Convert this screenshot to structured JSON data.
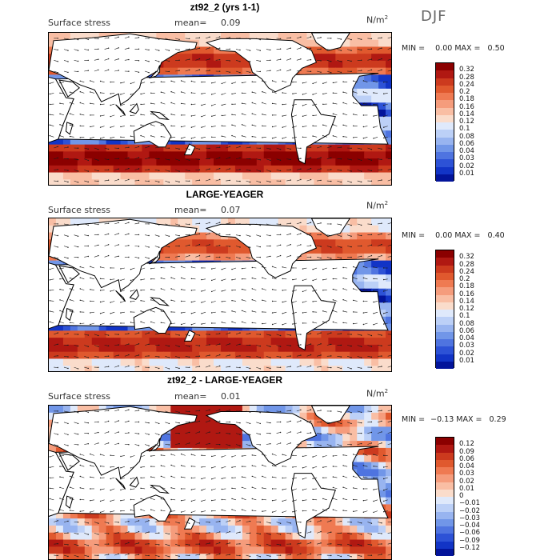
{
  "season": "DJF",
  "unit_base": "N/m",
  "unit_exp": "2",
  "panels": [
    {
      "title": "zt92_2 (yrs 1-1)",
      "field": "Surface stress",
      "mean_label": "mean=",
      "mean_value": "0.09",
      "min_label": "MIN =",
      "min_value": "0.00",
      "max_label": "MAX =",
      "max_value": "0.50",
      "colorbar": {
        "labels": [
          "0.32",
          "0.28",
          "0.24",
          "0.2",
          "0.18",
          "0.16",
          "0.14",
          "0.12",
          "0.1",
          "0.08",
          "0.06",
          "0.04",
          "0.03",
          "0.02",
          "0.01"
        ],
        "colors": [
          "#8b0000",
          "#b01812",
          "#cc3a1e",
          "#e0592e",
          "#ef7a52",
          "#f59c7c",
          "#f9bea4",
          "#fadccb",
          "#dfe9fb",
          "#bcd0f7",
          "#98b4f0",
          "#7196e8",
          "#4f74e0",
          "#2d52d6",
          "#1234c6",
          "#03149a"
        ]
      }
    },
    {
      "title": "LARGE-YEAGER",
      "field": "Surface stress",
      "mean_label": "mean=",
      "mean_value": "0.07",
      "min_label": "MIN =",
      "min_value": "0.00",
      "max_label": "MAX =",
      "max_value": "0.40",
      "colorbar": {
        "labels": [
          "0.32",
          "0.28",
          "0.24",
          "0.2",
          "0.18",
          "0.16",
          "0.14",
          "0.12",
          "0.1",
          "0.08",
          "0.06",
          "0.04",
          "0.03",
          "0.02",
          "0.01"
        ],
        "colors": [
          "#8b0000",
          "#b01812",
          "#cc3a1e",
          "#e0592e",
          "#ef7a52",
          "#f59c7c",
          "#f9bea4",
          "#fadccb",
          "#dfe9fb",
          "#bcd0f7",
          "#98b4f0",
          "#7196e8",
          "#4f74e0",
          "#2d52d6",
          "#1234c6",
          "#03149a"
        ]
      }
    },
    {
      "title": "zt92_2 - LARGE-YEAGER",
      "field": "Surface stress",
      "mean_label": "mean=",
      "mean_value": "0.01",
      "min_label": "MIN =",
      "min_value": "−0.13",
      "max_label": "MAX =",
      "max_value": "0.29",
      "colorbar": {
        "labels": [
          "0.12",
          "0.09",
          "0.06",
          "0.04",
          "0.03",
          "0.02",
          "0.01",
          "0",
          "−0.01",
          "−0.02",
          "−0.03",
          "−0.04",
          "−0.06",
          "−0.09",
          "−0.12"
        ],
        "colors": [
          "#8b0000",
          "#b01812",
          "#cc3a1e",
          "#e0592e",
          "#ef7a52",
          "#f59c7c",
          "#f9bea4",
          "#fadccb",
          "#dfe9fb",
          "#bcd0f7",
          "#98b4f0",
          "#7196e8",
          "#4f74e0",
          "#2d52d6",
          "#1234c6",
          "#03149a"
        ]
      }
    }
  ]
}
